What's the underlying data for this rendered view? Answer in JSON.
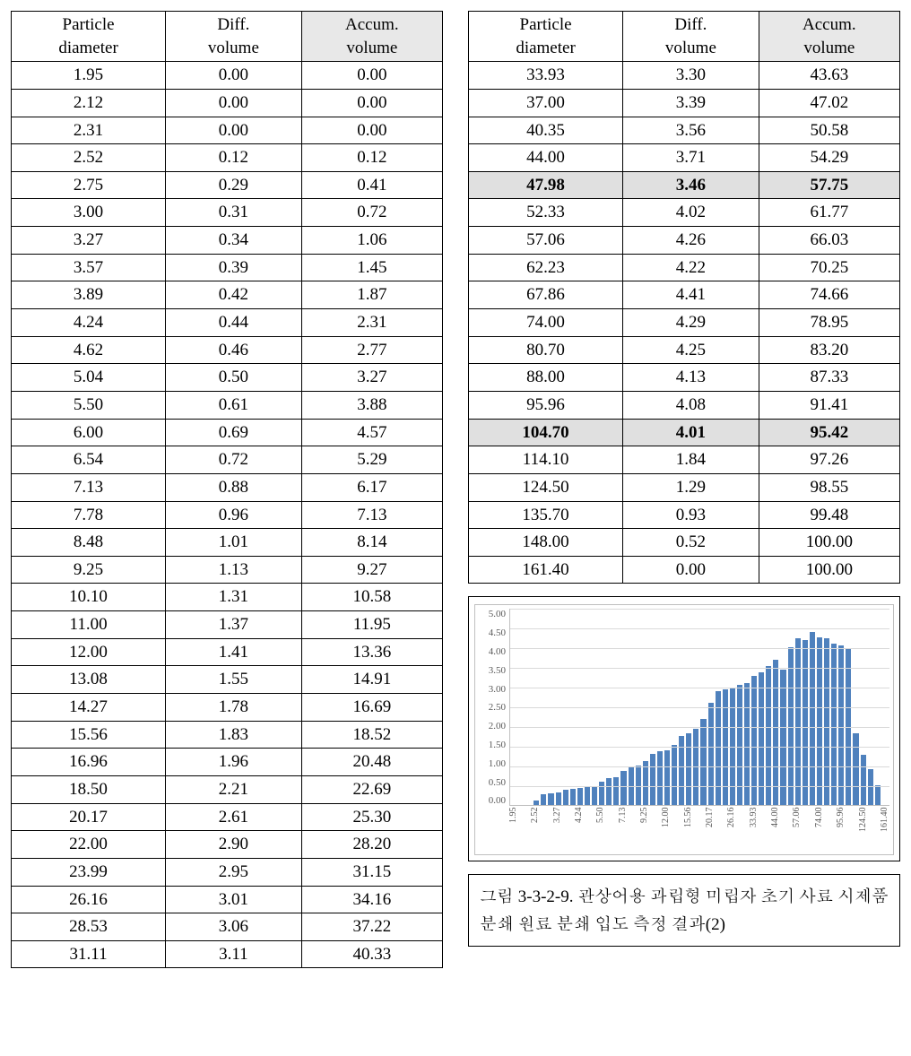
{
  "headers": {
    "particle_l1": "Particle",
    "particle_l2": "diameter",
    "diff_l1": "Diff.",
    "diff_l2": "volume",
    "accum_l1": "Accum.",
    "accum_l2": "volume"
  },
  "left_table": {
    "rows": [
      {
        "d": "1.95",
        "diff": "0.00",
        "acc": "0.00"
      },
      {
        "d": "2.12",
        "diff": "0.00",
        "acc": "0.00"
      },
      {
        "d": "2.31",
        "diff": "0.00",
        "acc": "0.00"
      },
      {
        "d": "2.52",
        "diff": "0.12",
        "acc": "0.12"
      },
      {
        "d": "2.75",
        "diff": "0.29",
        "acc": "0.41"
      },
      {
        "d": "3.00",
        "diff": "0.31",
        "acc": "0.72"
      },
      {
        "d": "3.27",
        "diff": "0.34",
        "acc": "1.06"
      },
      {
        "d": "3.57",
        "diff": "0.39",
        "acc": "1.45"
      },
      {
        "d": "3.89",
        "diff": "0.42",
        "acc": "1.87"
      },
      {
        "d": "4.24",
        "diff": "0.44",
        "acc": "2.31"
      },
      {
        "d": "4.62",
        "diff": "0.46",
        "acc": "2.77"
      },
      {
        "d": "5.04",
        "diff": "0.50",
        "acc": "3.27"
      },
      {
        "d": "5.50",
        "diff": "0.61",
        "acc": "3.88"
      },
      {
        "d": "6.00",
        "diff": "0.69",
        "acc": "4.57"
      },
      {
        "d": "6.54",
        "diff": "0.72",
        "acc": "5.29"
      },
      {
        "d": "7.13",
        "diff": "0.88",
        "acc": "6.17"
      },
      {
        "d": "7.78",
        "diff": "0.96",
        "acc": "7.13"
      },
      {
        "d": "8.48",
        "diff": "1.01",
        "acc": "8.14"
      },
      {
        "d": "9.25",
        "diff": "1.13",
        "acc": "9.27"
      },
      {
        "d": "10.10",
        "diff": "1.31",
        "acc": "10.58"
      },
      {
        "d": "11.00",
        "diff": "1.37",
        "acc": "11.95"
      },
      {
        "d": "12.00",
        "diff": "1.41",
        "acc": "13.36"
      },
      {
        "d": "13.08",
        "diff": "1.55",
        "acc": "14.91"
      },
      {
        "d": "14.27",
        "diff": "1.78",
        "acc": "16.69"
      },
      {
        "d": "15.56",
        "diff": "1.83",
        "acc": "18.52"
      },
      {
        "d": "16.96",
        "diff": "1.96",
        "acc": "20.48"
      },
      {
        "d": "18.50",
        "diff": "2.21",
        "acc": "22.69"
      },
      {
        "d": "20.17",
        "diff": "2.61",
        "acc": "25.30"
      },
      {
        "d": "22.00",
        "diff": "2.90",
        "acc": "28.20"
      },
      {
        "d": "23.99",
        "diff": "2.95",
        "acc": "31.15"
      },
      {
        "d": "26.16",
        "diff": "3.01",
        "acc": "34.16"
      },
      {
        "d": "28.53",
        "diff": "3.06",
        "acc": "37.22"
      },
      {
        "d": "31.11",
        "diff": "3.11",
        "acc": "40.33"
      }
    ]
  },
  "right_table": {
    "rows": [
      {
        "d": "33.93",
        "diff": "3.30",
        "acc": "43.63"
      },
      {
        "d": "37.00",
        "diff": "3.39",
        "acc": "47.02"
      },
      {
        "d": "40.35",
        "diff": "3.56",
        "acc": "50.58"
      },
      {
        "d": "44.00",
        "diff": "3.71",
        "acc": "54.29"
      },
      {
        "d": "47.98",
        "diff": "3.46",
        "acc": "57.75",
        "hl": true
      },
      {
        "d": "52.33",
        "diff": "4.02",
        "acc": "61.77"
      },
      {
        "d": "57.06",
        "diff": "4.26",
        "acc": "66.03"
      },
      {
        "d": "62.23",
        "diff": "4.22",
        "acc": "70.25"
      },
      {
        "d": "67.86",
        "diff": "4.41",
        "acc": "74.66"
      },
      {
        "d": "74.00",
        "diff": "4.29",
        "acc": "78.95"
      },
      {
        "d": "80.70",
        "diff": "4.25",
        "acc": "83.20"
      },
      {
        "d": "88.00",
        "diff": "4.13",
        "acc": "87.33"
      },
      {
        "d": "95.96",
        "diff": "4.08",
        "acc": "91.41"
      },
      {
        "d": "104.70",
        "diff": "4.01",
        "acc": "95.42",
        "hl": true
      },
      {
        "d": "114.10",
        "diff": "1.84",
        "acc": "97.26"
      },
      {
        "d": "124.50",
        "diff": "1.29",
        "acc": "98.55"
      },
      {
        "d": "135.70",
        "diff": "0.93",
        "acc": "99.48"
      },
      {
        "d": "148.00",
        "diff": "0.52",
        "acc": "100.00"
      },
      {
        "d": "161.40",
        "diff": "0.00",
        "acc": "100.00"
      }
    ]
  },
  "chart": {
    "type": "bar",
    "bar_color": "#4f81bd",
    "grid_color": "#d9d9d9",
    "axis_color": "#bfbfbf",
    "tick_text_color": "#595959",
    "tick_fontsize": 11,
    "background_color": "#ffffff",
    "ylim": [
      0,
      5.0
    ],
    "ytick_step": 0.5,
    "yticks": [
      "5.00",
      "4.50",
      "4.00",
      "3.50",
      "3.00",
      "2.50",
      "2.00",
      "1.50",
      "1.00",
      "0.50",
      "0.00"
    ],
    "categories": [
      "1.95",
      "2.12",
      "2.31",
      "2.52",
      "2.75",
      "3.00",
      "3.27",
      "3.57",
      "3.89",
      "4.24",
      "4.62",
      "5.04",
      "5.50",
      "6.00",
      "6.54",
      "7.13",
      "7.78",
      "8.48",
      "9.25",
      "10.10",
      "11.00",
      "12.00",
      "13.08",
      "14.27",
      "15.56",
      "16.96",
      "18.50",
      "20.17",
      "22.00",
      "23.99",
      "26.16",
      "28.53",
      "31.11",
      "33.93",
      "37.00",
      "40.35",
      "44.00",
      "47.98",
      "52.33",
      "57.06",
      "62.23",
      "67.86",
      "74.00",
      "80.70",
      "88.00",
      "95.96",
      "104.70",
      "114.10",
      "124.50",
      "135.70",
      "148.00",
      "161.40"
    ],
    "values": [
      0.0,
      0.0,
      0.0,
      0.12,
      0.29,
      0.31,
      0.34,
      0.39,
      0.42,
      0.44,
      0.46,
      0.5,
      0.61,
      0.69,
      0.72,
      0.88,
      0.96,
      1.01,
      1.13,
      1.31,
      1.37,
      1.41,
      1.55,
      1.78,
      1.83,
      1.96,
      2.21,
      2.61,
      2.9,
      2.95,
      3.01,
      3.06,
      3.11,
      3.3,
      3.39,
      3.56,
      3.71,
      3.46,
      4.02,
      4.26,
      4.22,
      4.41,
      4.29,
      4.25,
      4.13,
      4.08,
      4.01,
      1.84,
      1.29,
      0.93,
      0.52,
      0.0
    ],
    "x_label_stride": 3
  },
  "caption": "그림 3-3-2-9. 관상어용 과립형 미립자 초기 사료 시제품 분쇄 원료 분쇄 입도 측정 결과(2)"
}
